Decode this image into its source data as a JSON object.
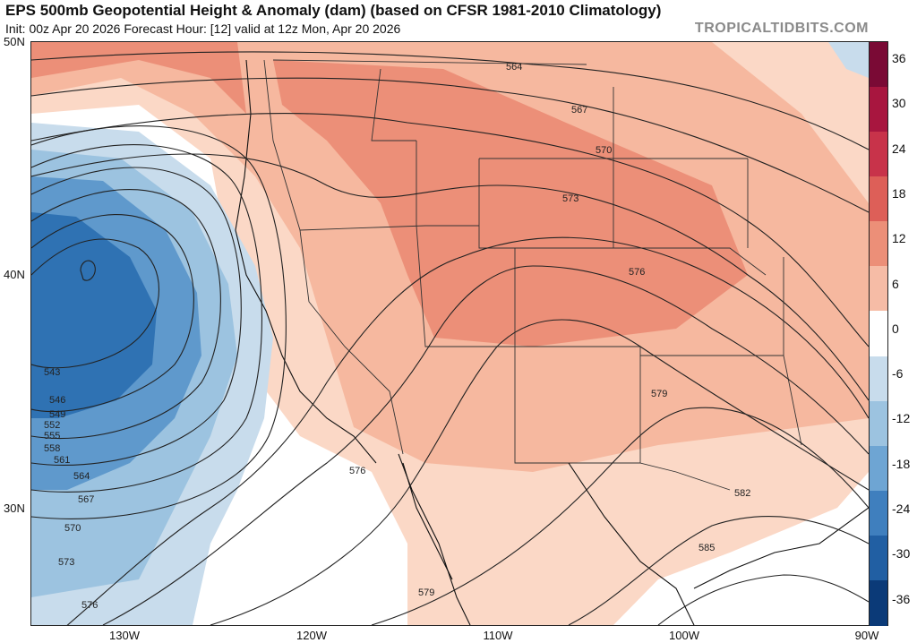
{
  "header": {
    "title": "EPS 500mb Geopotential Height & Anomaly (dam) (based on CFSR 1981-2010 Climatology)",
    "subtitle": "Init: 00z Apr 20 2026   Forecast Hour: [12]   valid at 12z Mon, Apr 20 2026",
    "brand": "TROPICALTIDBITS.COM"
  },
  "axes": {
    "latitude_labels": [
      "50N",
      "40N",
      "30N"
    ],
    "longitude_labels": [
      "130W",
      "120W",
      "110W",
      "100W",
      "90W"
    ]
  },
  "colorbar": {
    "labels": [
      "36",
      "30",
      "24",
      "18",
      "12",
      "6",
      "0",
      "-6",
      "-12",
      "-18",
      "-24",
      "-30",
      "-36"
    ],
    "colors": [
      "#7a0a35",
      "#a8163f",
      "#c8334a",
      "#dd5f58",
      "#ec8f78",
      "#f6bca6",
      "#ffffff",
      "#c8dcec",
      "#9cc3e0",
      "#6ea5d3",
      "#3f7fbe",
      "#215fa3",
      "#0b3a78"
    ]
  },
  "map": {
    "contour_labels": [
      "543",
      "546",
      "549",
      "552",
      "555",
      "558",
      "561",
      "564",
      "567",
      "570",
      "573",
      "576",
      "579",
      "582",
      "585"
    ],
    "inline_labels": {
      "l564": "564",
      "l567": "567",
      "l570": "570",
      "l573": "573",
      "l576": "576",
      "l576b": "576",
      "l579": "579",
      "l579b": "579",
      "l582": "582",
      "l585": "585"
    },
    "colors": {
      "positive_strong": "#ec8f78",
      "positive_moderate": "#f6b89f",
      "positive_weak": "#fbd8c6",
      "negative_strong": "#2f72b3",
      "negative_moderate": "#5f99cc",
      "negative_weak": "#9cc3e0",
      "negative_faint": "#c8dcec"
    }
  }
}
